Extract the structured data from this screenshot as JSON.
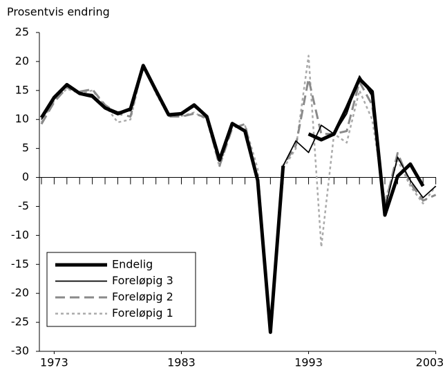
{
  "chart_data": {
    "type": "line",
    "ylabel": "Prosentvis endring",
    "x": [
      1972,
      1973,
      1974,
      1975,
      1976,
      1977,
      1978,
      1979,
      1980,
      1981,
      1982,
      1983,
      1984,
      1985,
      1986,
      1987,
      1988,
      1989,
      1990,
      1991,
      1992,
      1993,
      1994,
      1995,
      1996,
      1997,
      1998,
      1999,
      2000,
      2001,
      2002,
      2003
    ],
    "series": [
      {
        "name": "Endelig",
        "color": "#000000",
        "width": 5,
        "dash": "none",
        "values": [
          10.3,
          13.8,
          16,
          14.5,
          14,
          12,
          11,
          11.8,
          19.3,
          15,
          10.8,
          11,
          12.5,
          10.5,
          3,
          9.3,
          8,
          -0.5,
          -26.7,
          2,
          null,
          7.5,
          6.5,
          7.5,
          12,
          17,
          14.8,
          -6.5,
          0.2,
          2.3,
          -1.5,
          null
        ]
      },
      {
        "name": "Foreløpig 3",
        "color": "#000000",
        "width": 1.8,
        "dash": "none",
        "values": [
          10,
          13.5,
          15.8,
          14.6,
          14.3,
          12.2,
          11.3,
          11.5,
          19.2,
          15,
          10.6,
          10.8,
          12.2,
          10.4,
          3.2,
          9.2,
          8.2,
          -0.3,
          -26.5,
          2,
          6.3,
          4.3,
          9,
          7.5,
          11,
          17.5,
          14,
          -5.5,
          3.5,
          -0.5,
          -3.5,
          -1.5
        ]
      },
      {
        "name": "Foreløpig 2",
        "color": "#8a8a8a",
        "width": 3,
        "dash": "14 7",
        "values": [
          9.2,
          13,
          15.5,
          14.8,
          15.2,
          12.5,
          11,
          10.5,
          19.5,
          14.8,
          10.5,
          10.5,
          11,
          10.3,
          2,
          8.5,
          9.2,
          -0.5,
          -26.5,
          2,
          5.5,
          17,
          7.5,
          7.5,
          8,
          16.5,
          12.5,
          -5,
          4.2,
          -1,
          -4,
          -3
        ]
      },
      {
        "name": "Foreløpig 1",
        "color": "#aaaaaa",
        "width": 2.5,
        "dash": "4 4",
        "values": [
          9.5,
          13.2,
          15.3,
          14.5,
          15,
          12.4,
          9.5,
          10,
          19.4,
          14.5,
          10.5,
          10.6,
          11.2,
          10,
          1.8,
          8.8,
          9,
          1.5,
          -26,
          1.5,
          5,
          21,
          -12,
          7.5,
          6,
          15,
          10,
          -4,
          3,
          -1.5,
          -4.5,
          -1.5
        ]
      }
    ],
    "xlim": [
      1972,
      2003.4
    ],
    "xticks": [
      1973,
      1983,
      1993,
      2003
    ],
    "ylim": [
      -30,
      25
    ],
    "yticks": [
      -30,
      -25,
      -20,
      -15,
      -10,
      -5,
      0,
      5,
      10,
      15,
      20,
      25
    ],
    "legend": "lower left"
  }
}
